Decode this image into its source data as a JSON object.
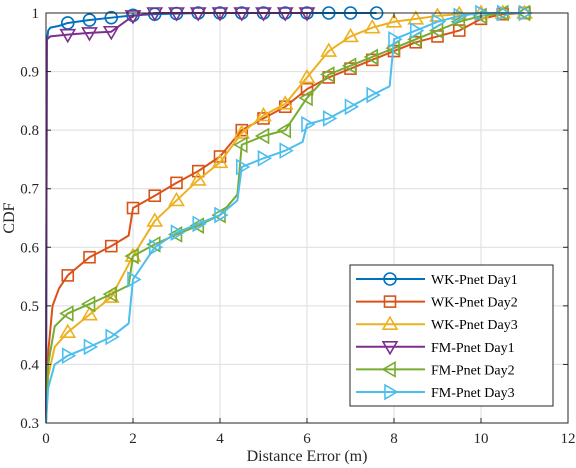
{
  "chart_data": {
    "type": "line",
    "xlabel": "Distance Error (m)",
    "ylabel": "CDF",
    "xlim": [
      0,
      12
    ],
    "ylim": [
      0.3,
      1
    ],
    "xticks": [
      "0",
      "2",
      "4",
      "6",
      "8",
      "10",
      "12"
    ],
    "yticks": [
      "0.3",
      "0.4",
      "0.5",
      "0.6",
      "0.7",
      "0.8",
      "0.9",
      "1"
    ],
    "grid": true,
    "legend_position": "bottom-right",
    "series": [
      {
        "name": "WK-Pnet Day1",
        "color": "#0072BD",
        "marker": "circle",
        "x": [
          0.0,
          0.02,
          0.05,
          0.1,
          0.3,
          0.5,
          1.0,
          1.5,
          2.0,
          2.5,
          3.0,
          3.5,
          4.0,
          4.5,
          5.0,
          5.5,
          6.0,
          6.5,
          7.0,
          7.6
        ],
        "y": [
          0.3,
          0.95,
          0.97,
          0.975,
          0.978,
          0.983,
          0.988,
          0.992,
          0.996,
          0.998,
          0.999,
          1.0,
          1.0,
          1.0,
          1.0,
          1.0,
          1.0,
          1.0,
          1.0,
          1.0
        ],
        "marker_x": [
          0.5,
          1.0,
          1.5,
          2.0,
          2.5,
          3.0,
          3.5,
          4.0,
          4.5,
          5.0,
          5.5,
          6.0,
          6.5,
          7.0,
          7.6
        ],
        "marker_y": [
          0.983,
          0.988,
          0.992,
          0.996,
          0.998,
          0.999,
          1.0,
          1.0,
          1.0,
          1.0,
          1.0,
          1.0,
          1.0,
          1.0,
          1.0
        ]
      },
      {
        "name": "WK-Pnet Day2",
        "color": "#D95319",
        "marker": "square",
        "x": [
          0.0,
          0.05,
          0.15,
          0.3,
          0.5,
          1.0,
          1.5,
          1.9,
          2.0,
          2.5,
          3.0,
          3.5,
          4.0,
          4.5,
          5.0,
          5.5,
          6.0,
          6.5,
          7.0,
          7.5,
          8.0,
          8.5,
          9.0,
          9.5,
          10.0,
          10.5,
          11.0
        ],
        "y": [
          0.3,
          0.42,
          0.5,
          0.53,
          0.552,
          0.583,
          0.602,
          0.62,
          0.667,
          0.688,
          0.71,
          0.73,
          0.755,
          0.8,
          0.82,
          0.84,
          0.87,
          0.89,
          0.905,
          0.92,
          0.935,
          0.95,
          0.96,
          0.97,
          0.99,
          0.998,
          1.0
        ],
        "marker_x": [
          0.5,
          1.0,
          1.5,
          2.0,
          2.5,
          3.0,
          3.5,
          4.0,
          4.5,
          5.0,
          5.5,
          6.0,
          6.5,
          7.0,
          7.5,
          8.0,
          8.5,
          9.0,
          9.5,
          10.0,
          10.5,
          11.0
        ],
        "marker_y": [
          0.552,
          0.583,
          0.602,
          0.667,
          0.688,
          0.71,
          0.73,
          0.755,
          0.8,
          0.82,
          0.84,
          0.87,
          0.89,
          0.905,
          0.92,
          0.935,
          0.95,
          0.96,
          0.97,
          0.99,
          0.998,
          1.0
        ]
      },
      {
        "name": "WK-Pnet Day3",
        "color": "#EDB120",
        "marker": "triangle-up",
        "x": [
          0.0,
          0.05,
          0.2,
          0.5,
          1.0,
          1.5,
          2.0,
          2.5,
          3.0,
          3.5,
          4.0,
          4.5,
          5.0,
          5.5,
          6.0,
          6.5,
          7.0,
          7.5,
          8.0,
          8.5,
          9.0,
          9.5,
          10.0,
          10.5,
          11.0
        ],
        "y": [
          0.3,
          0.38,
          0.43,
          0.455,
          0.485,
          0.515,
          0.585,
          0.645,
          0.68,
          0.715,
          0.745,
          0.795,
          0.825,
          0.845,
          0.89,
          0.935,
          0.96,
          0.975,
          0.985,
          0.99,
          0.995,
          0.998,
          1.0,
          1.0,
          1.0
        ],
        "marker_x": [
          0.5,
          1.0,
          1.5,
          2.0,
          2.5,
          3.0,
          3.5,
          4.0,
          4.5,
          5.0,
          5.5,
          6.0,
          6.5,
          7.0,
          7.5,
          8.0,
          8.5,
          9.0,
          9.5,
          10.0,
          10.5,
          11.0
        ],
        "marker_y": [
          0.455,
          0.485,
          0.515,
          0.585,
          0.645,
          0.68,
          0.715,
          0.745,
          0.795,
          0.825,
          0.845,
          0.89,
          0.935,
          0.96,
          0.975,
          0.985,
          0.99,
          0.995,
          0.998,
          1.0,
          1.0,
          1.0
        ]
      },
      {
        "name": "FM-Pnet Day1",
        "color": "#7E2F8E",
        "marker": "triangle-down",
        "x": [
          0.0,
          0.02,
          0.1,
          0.5,
          1.0,
          1.5,
          2.0,
          2.5,
          3.0,
          3.5,
          4.0,
          4.5,
          5.0,
          5.5,
          6.0
        ],
        "y": [
          0.3,
          0.955,
          0.96,
          0.963,
          0.966,
          0.968,
          0.995,
          1.0,
          1.0,
          1.0,
          1.0,
          1.0,
          1.0,
          1.0,
          1.0
        ],
        "marker_x": [
          0.5,
          1.0,
          1.5,
          2.0,
          2.5,
          3.0,
          3.5,
          4.0,
          4.5,
          5.0,
          5.5,
          6.0
        ],
        "marker_y": [
          0.963,
          0.966,
          0.968,
          0.995,
          1.0,
          1.0,
          1.0,
          1.0,
          1.0,
          1.0,
          1.0,
          1.0
        ]
      },
      {
        "name": "FM-Pnet Day2",
        "color": "#77AC30",
        "marker": "triangle-left",
        "x": [
          0.0,
          0.05,
          0.2,
          0.5,
          1.0,
          1.5,
          1.9,
          2.0,
          2.5,
          3.0,
          3.5,
          4.0,
          4.4,
          4.5,
          5.0,
          5.5,
          6.0,
          6.5,
          7.0,
          7.5,
          8.0,
          8.5,
          9.0,
          9.5,
          10.0,
          10.5,
          11.0
        ],
        "y": [
          0.3,
          0.4,
          0.465,
          0.487,
          0.503,
          0.52,
          0.535,
          0.585,
          0.605,
          0.622,
          0.637,
          0.655,
          0.69,
          0.775,
          0.79,
          0.8,
          0.855,
          0.895,
          0.91,
          0.925,
          0.94,
          0.955,
          0.97,
          0.985,
          0.995,
          1.0,
          1.0
        ],
        "marker_x": [
          0.5,
          1.0,
          1.5,
          2.0,
          2.5,
          3.0,
          3.5,
          4.0,
          4.5,
          5.0,
          5.5,
          6.0,
          6.5,
          7.0,
          7.5,
          8.0,
          8.5,
          9.0,
          9.5,
          10.0,
          10.5,
          11.0
        ],
        "marker_y": [
          0.487,
          0.503,
          0.52,
          0.585,
          0.605,
          0.622,
          0.637,
          0.655,
          0.775,
          0.79,
          0.8,
          0.855,
          0.895,
          0.91,
          0.925,
          0.94,
          0.955,
          0.97,
          0.985,
          0.995,
          1.0,
          1.0
        ]
      },
      {
        "name": "FM-Pnet Day3",
        "color": "#4DBEEE",
        "marker": "triangle-right",
        "x": [
          0.0,
          0.05,
          0.2,
          0.5,
          1.0,
          1.5,
          1.9,
          2.0,
          2.5,
          3.0,
          3.5,
          4.0,
          4.4,
          4.5,
          5.0,
          5.5,
          5.9,
          6.0,
          6.5,
          7.0,
          7.5,
          7.9,
          8.0,
          8.5,
          9.0,
          9.5,
          10.0,
          10.5,
          11.0
        ],
        "y": [
          0.3,
          0.36,
          0.4,
          0.415,
          0.43,
          0.447,
          0.47,
          0.545,
          0.6,
          0.625,
          0.64,
          0.655,
          0.68,
          0.737,
          0.752,
          0.765,
          0.78,
          0.81,
          0.82,
          0.84,
          0.86,
          0.875,
          0.955,
          0.97,
          0.985,
          0.995,
          1.0,
          1.0,
          1.0
        ],
        "marker_x": [
          0.5,
          1.0,
          1.5,
          2.0,
          2.5,
          3.0,
          3.5,
          4.0,
          4.5,
          5.0,
          5.5,
          6.0,
          6.5,
          7.0,
          7.5,
          8.0,
          8.5,
          9.0,
          9.5,
          10.0,
          10.5,
          11.0
        ],
        "marker_y": [
          0.415,
          0.43,
          0.447,
          0.545,
          0.6,
          0.625,
          0.64,
          0.655,
          0.737,
          0.752,
          0.765,
          0.81,
          0.82,
          0.84,
          0.86,
          0.955,
          0.97,
          0.985,
          0.995,
          1.0,
          1.0,
          1.0
        ]
      }
    ]
  }
}
